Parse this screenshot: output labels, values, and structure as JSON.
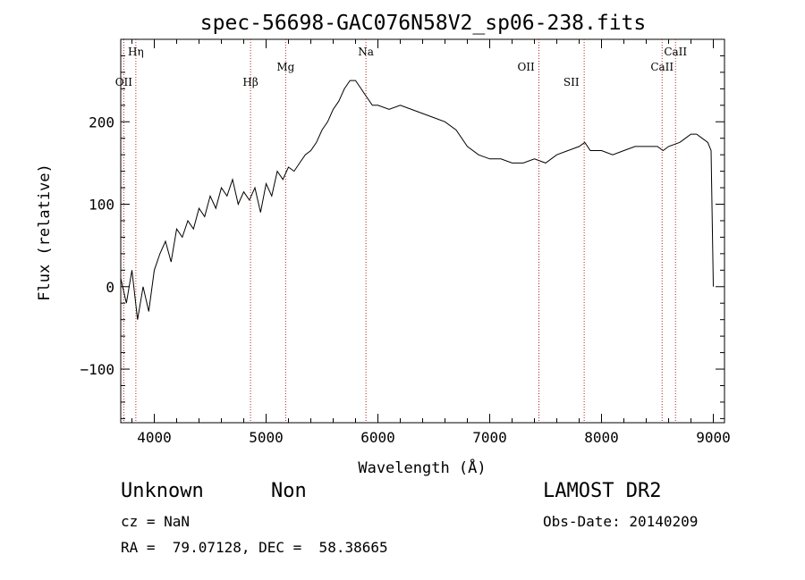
{
  "chart_data": {
    "type": "line",
    "title": "spec-56698-GAC076N58V2_sp06-238.fits",
    "xlabel": "Wavelength (Å)",
    "ylabel": "Flux (relative)",
    "xlim": [
      3700,
      9100
    ],
    "ylim": [
      -165,
      300
    ],
    "xticks": [
      4000,
      5000,
      6000,
      7000,
      8000,
      9000
    ],
    "yticks": [
      -100,
      0,
      100,
      200
    ],
    "grid": false,
    "series": [
      {
        "values_note": "",
        "x": [
          3700,
          3750,
          3800,
          3850,
          3900,
          3950,
          4000,
          4050,
          4100,
          4150,
          4200,
          4250,
          4300,
          4350,
          4400,
          4450,
          4500,
          4550,
          4600,
          4650,
          4700,
          4750,
          4800,
          4850,
          4900,
          4950,
          5000,
          5050,
          5100,
          5150,
          5200,
          5250,
          5300,
          5350,
          5400,
          5450,
          5500,
          5550,
          5600,
          5650,
          5700,
          5750,
          5800,
          5850,
          5900,
          5950,
          6000,
          6100,
          6200,
          6300,
          6400,
          6500,
          6600,
          6700,
          6800,
          6900,
          7000,
          7100,
          7200,
          7300,
          7400,
          7500,
          7600,
          7700,
          7800,
          7850,
          7900,
          8000,
          8100,
          8200,
          8300,
          8400,
          8500,
          8550,
          8600,
          8700,
          8750,
          8800,
          8850,
          8900,
          8950,
          8980,
          9000
        ],
        "y": [
          10,
          -20,
          20,
          -40,
          0,
          -30,
          20,
          40,
          55,
          30,
          70,
          60,
          80,
          70,
          95,
          85,
          110,
          95,
          120,
          110,
          130,
          100,
          115,
          105,
          120,
          90,
          125,
          110,
          140,
          130,
          145,
          140,
          150,
          160,
          165,
          175,
          190,
          200,
          215,
          225,
          240,
          250,
          250,
          240,
          230,
          220,
          220,
          215,
          220,
          215,
          210,
          205,
          200,
          190,
          170,
          160,
          155,
          155,
          150,
          150,
          155,
          150,
          160,
          165,
          170,
          175,
          165,
          165,
          160,
          165,
          170,
          170,
          170,
          165,
          170,
          175,
          180,
          185,
          185,
          180,
          175,
          165,
          0
        ]
      }
    ],
    "annotations": [
      {
        "label": "Hη",
        "x": 3835,
        "row": "top"
      },
      {
        "label": "OII",
        "x": 3727,
        "row": "low"
      },
      {
        "label": "Hβ",
        "x": 4861,
        "row": "low"
      },
      {
        "label": "Mg",
        "x": 5175,
        "row": "mid"
      },
      {
        "label": "Na",
        "x": 5893,
        "row": "top"
      },
      {
        "label": "OII",
        "x": 7325,
        "row": "mid"
      },
      {
        "label": "SII",
        "x": 7730,
        "row": "low"
      },
      {
        "label": "CaII",
        "x": 8542,
        "row": "mid"
      },
      {
        "label": "CaII",
        "x": 8662,
        "row": "top"
      }
    ],
    "marker_lines": [
      3835,
      3727,
      4861,
      5175,
      5893,
      7440,
      7845,
      8542,
      8662
    ]
  },
  "info": {
    "object_class": "Unknown",
    "subclass": "Non",
    "survey": "LAMOST DR2",
    "redshift": "cz = NaN",
    "obs_date": "Obs-Date: 20140209",
    "coords": "RA =  79.07128, DEC =  58.38665"
  },
  "colors": {
    "line": "#000000",
    "marker": "#b22222",
    "axis": "#000000"
  }
}
